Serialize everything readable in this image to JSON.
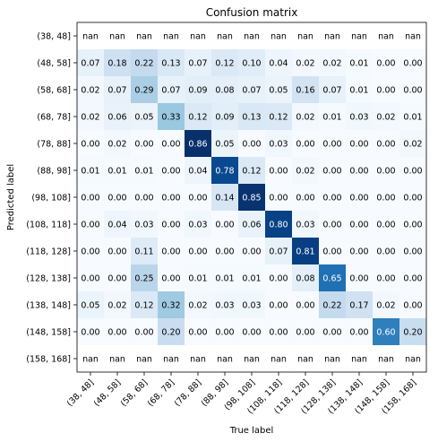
{
  "chart_data": {
    "type": "heatmap",
    "title": "Confusion matrix",
    "xlabel": "True label",
    "ylabel": "Predicted label",
    "categories": [
      "(38, 48]",
      "(48, 58]",
      "(58, 68]",
      "(68, 78]",
      "(78, 88]",
      "(88, 98]",
      "(98, 108]",
      "(108, 118]",
      "(118, 128]",
      "(128, 138]",
      "(138, 148]",
      "(148, 158]",
      "(158, 168]"
    ],
    "colormap": "Blues",
    "value_range": [
      0,
      0.86
    ],
    "values": [
      [
        "nan",
        "nan",
        "nan",
        "nan",
        "nan",
        "nan",
        "nan",
        "nan",
        "nan",
        "nan",
        "nan",
        "nan",
        "nan"
      ],
      [
        "0.07",
        "0.18",
        "0.22",
        "0.13",
        "0.07",
        "0.12",
        "0.10",
        "0.04",
        "0.02",
        "0.02",
        "0.01",
        "0.00",
        "0.00"
      ],
      [
        "0.02",
        "0.07",
        "0.29",
        "0.07",
        "0.09",
        "0.08",
        "0.07",
        "0.05",
        "0.16",
        "0.07",
        "0.01",
        "0.00",
        "0.00"
      ],
      [
        "0.02",
        "0.06",
        "0.05",
        "0.33",
        "0.12",
        "0.09",
        "0.13",
        "0.12",
        "0.02",
        "0.01",
        "0.03",
        "0.02",
        "0.01"
      ],
      [
        "0.00",
        "0.02",
        "0.00",
        "0.00",
        "0.86",
        "0.05",
        "0.00",
        "0.03",
        "0.00",
        "0.00",
        "0.00",
        "0.00",
        "0.02"
      ],
      [
        "0.01",
        "0.01",
        "0.01",
        "0.00",
        "0.04",
        "0.78",
        "0.12",
        "0.00",
        "0.02",
        "0.00",
        "0.00",
        "0.00",
        "0.00"
      ],
      [
        "0.00",
        "0.00",
        "0.00",
        "0.00",
        "0.00",
        "0.14",
        "0.85",
        "0.00",
        "0.00",
        "0.00",
        "0.00",
        "0.00",
        "0.00"
      ],
      [
        "0.00",
        "0.04",
        "0.03",
        "0.00",
        "0.03",
        "0.00",
        "0.06",
        "0.80",
        "0.03",
        "0.00",
        "0.00",
        "0.00",
        "0.00"
      ],
      [
        "0.00",
        "0.00",
        "0.11",
        "0.00",
        "0.00",
        "0.00",
        "0.00",
        "0.07",
        "0.81",
        "0.00",
        "0.00",
        "0.00",
        "0.00"
      ],
      [
        "0.00",
        "0.00",
        "0.25",
        "0.00",
        "0.01",
        "0.01",
        "0.01",
        "0.00",
        "0.08",
        "0.65",
        "0.00",
        "0.00",
        "0.00"
      ],
      [
        "0.05",
        "0.02",
        "0.12",
        "0.32",
        "0.02",
        "0.03",
        "0.03",
        "0.00",
        "0.00",
        "0.22",
        "0.17",
        "0.02",
        "0.00"
      ],
      [
        "0.00",
        "0.00",
        "0.00",
        "0.20",
        "0.00",
        "0.00",
        "0.00",
        "0.00",
        "0.00",
        "0.00",
        "0.00",
        "0.60",
        "0.20"
      ],
      [
        "nan",
        "nan",
        "nan",
        "nan",
        "nan",
        "nan",
        "nan",
        "nan",
        "nan",
        "nan",
        "nan",
        "nan",
        "nan"
      ]
    ]
  }
}
